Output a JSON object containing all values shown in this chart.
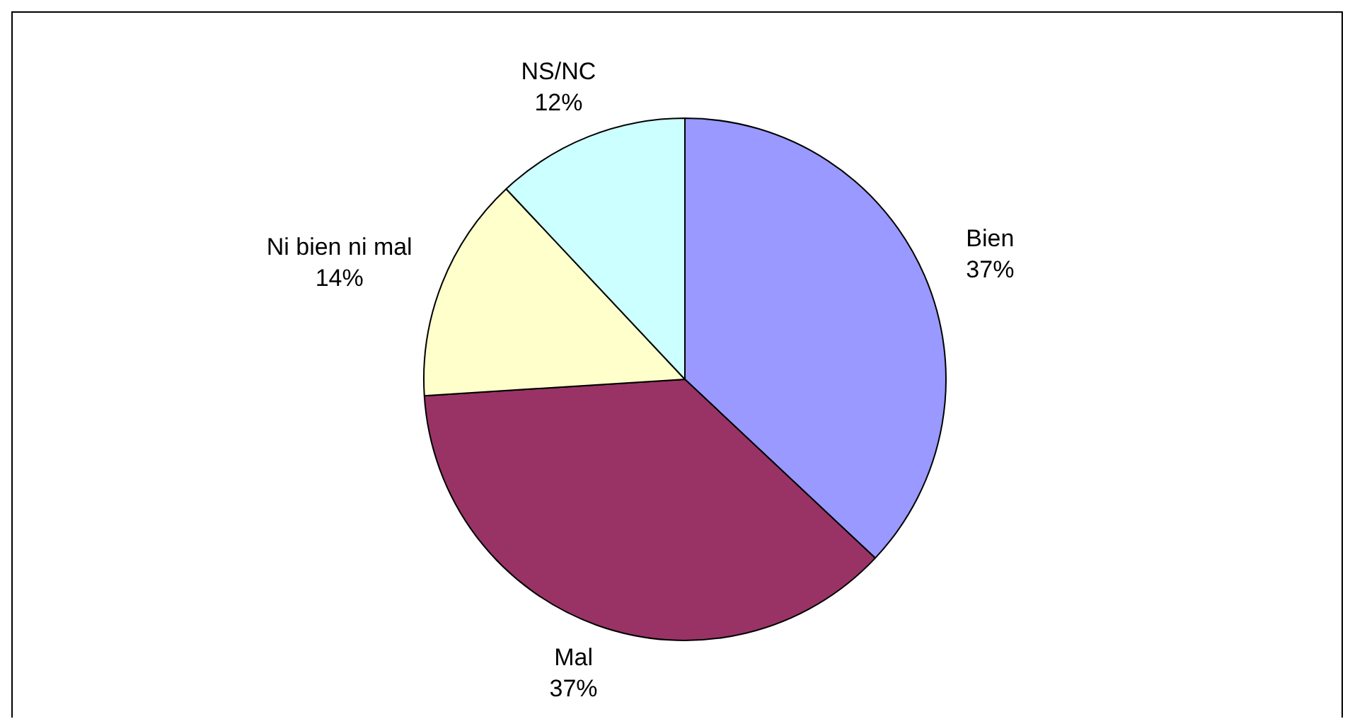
{
  "chart_data": {
    "type": "pie",
    "categories": [
      "Bien",
      "Mal",
      "Ni bien ni mal",
      "NS/NC"
    ],
    "values": [
      37,
      37,
      14,
      12
    ],
    "colors": [
      "#9999ff",
      "#993366",
      "#ffffcc",
      "#ccffff"
    ],
    "value_labels": [
      "37%",
      "37%",
      "14%",
      "12%"
    ],
    "legend": false
  }
}
